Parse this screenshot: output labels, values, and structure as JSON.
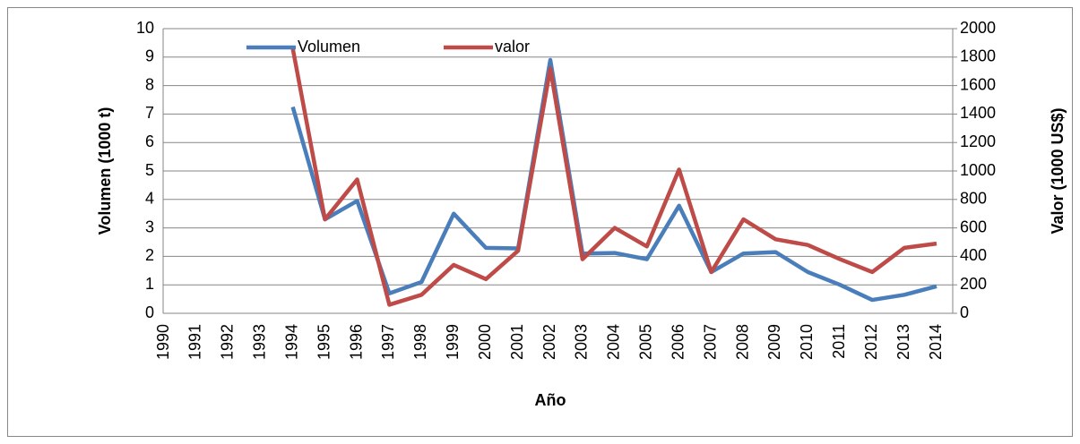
{
  "chart_data": {
    "type": "line",
    "xlabel": "Año",
    "ylabel": "Volumen (1000 t)",
    "y2label": "Valor (1000 US$)",
    "categories": [
      "1990",
      "1991",
      "1992",
      "1993",
      "1994",
      "1995",
      "1996",
      "1997",
      "1998",
      "1999",
      "2000",
      "2001",
      "2002",
      "2003",
      "2004",
      "2005",
      "2006",
      "2007",
      "2008",
      "2009",
      "2010",
      "2011",
      "2012",
      "2013",
      "2014"
    ],
    "series": [
      {
        "name": "Volumen",
        "color": "#4a7ebb",
        "values": [
          null,
          null,
          null,
          null,
          7.25,
          3.3,
          3.95,
          0.7,
          1.1,
          3.5,
          2.3,
          2.28,
          8.9,
          2.1,
          2.12,
          1.9,
          3.78,
          1.45,
          2.1,
          2.15,
          1.45,
          1.0,
          0.47,
          0.65,
          0.95
        ]
      },
      {
        "name": "valor",
        "color": "#be4b48",
        "axis": "y2",
        "values": [
          null,
          null,
          null,
          null,
          1860,
          660,
          940,
          60,
          130,
          340,
          240,
          440,
          1720,
          380,
          600,
          470,
          1010,
          290,
          660,
          520,
          480,
          380,
          290,
          460,
          490
        ]
      }
    ],
    "ylim": [
      0,
      10
    ],
    "yticks": [
      0,
      1,
      2,
      3,
      4,
      5,
      6,
      7,
      8,
      9,
      10
    ],
    "y2lim": [
      0,
      2000
    ],
    "y2ticks": [
      0,
      200,
      400,
      600,
      800,
      1000,
      1200,
      1400,
      1600,
      1800,
      2000
    ],
    "grid": true,
    "legend": "top"
  }
}
